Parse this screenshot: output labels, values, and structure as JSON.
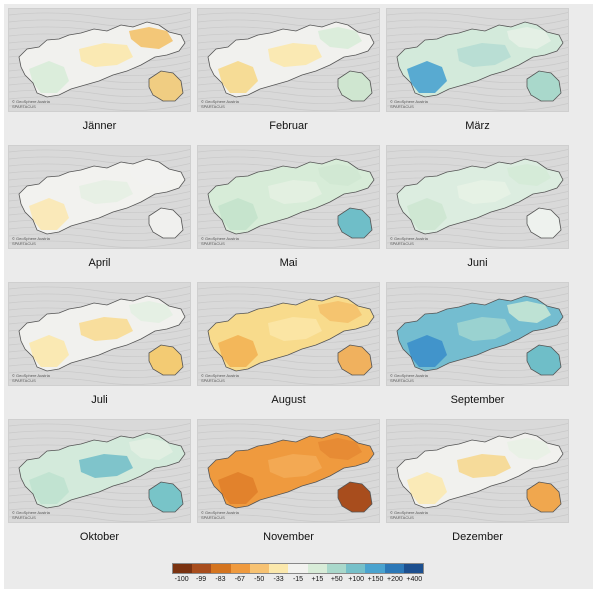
{
  "months": [
    {
      "label": "Jänner",
      "fills": {
        "base": "#f1f1ee",
        "a": "#d8ecd8",
        "b": "#fbe8ac",
        "c": "#f3c26a",
        "east": "#f0cd82"
      }
    },
    {
      "label": "Februar",
      "fills": {
        "base": "#f1f1ee",
        "a": "#f6d98c",
        "b": "#fbe8ac",
        "c": "#d8ecd8",
        "east": "#cfe6d0"
      }
    },
    {
      "label": "März",
      "fills": {
        "base": "#d3eadb",
        "a": "#4aa3cf",
        "b": "#b6ddd3",
        "c": "#e5f1e5",
        "east": "#a9d8cb"
      }
    },
    {
      "label": "April",
      "fills": {
        "base": "#f2f2ef",
        "a": "#fbe8b2",
        "b": "#e6f0e3",
        "c": "#f2f2ef",
        "east": "#f0f0ee"
      }
    },
    {
      "label": "Mai",
      "fills": {
        "base": "#d7ecd8",
        "a": "#c4e3cc",
        "b": "#e4f1e2",
        "c": "#d0e8d3",
        "east": "#6fbec8"
      }
    },
    {
      "label": "Juni",
      "fills": {
        "base": "#dcede0",
        "a": "#cde6d1",
        "b": "#e7f2e6",
        "c": "#d4ead7",
        "east": "#eef2ee"
      }
    },
    {
      "label": "Juli",
      "fills": {
        "base": "#f1f1ee",
        "a": "#fbe8ac",
        "b": "#f8dc94",
        "c": "#e3efe2",
        "east": "#f3cb73"
      }
    },
    {
      "label": "August",
      "fills": {
        "base": "#f8db8c",
        "a": "#f2b254",
        "b": "#fbe5a6",
        "c": "#f4c16c",
        "east": "#f0b15e"
      }
    },
    {
      "label": "September",
      "fills": {
        "base": "#74bdd0",
        "a": "#3c8fca",
        "b": "#9ed4cf",
        "c": "#c6e6d4",
        "east": "#6fbec8"
      }
    },
    {
      "label": "Oktober",
      "fills": {
        "base": "#d3eadb",
        "a": "#bfe2cf",
        "b": "#76c0c9",
        "c": "#e2f0e2",
        "east": "#78c4c8"
      }
    },
    {
      "label": "November",
      "fills": {
        "base": "#ef9a3e",
        "a": "#e07f2a",
        "b": "#f3ab55",
        "c": "#e68a33",
        "east": "#a84d1d"
      }
    },
    {
      "label": "Dezember",
      "fills": {
        "base": "#f1f1ee",
        "a": "#fbe9b0",
        "b": "#f6d890",
        "c": "#e8f1e4",
        "east": "#f0a74e"
      }
    }
  ],
  "copyright": {
    "line1": "© GeoSphere Austria",
    "line2": "SPARTACUS"
  },
  "legend": {
    "colors": [
      "#7a3210",
      "#a84d1d",
      "#d4741f",
      "#ef9a3e",
      "#f7c272",
      "#fbe8ac",
      "#f2f2ef",
      "#d8ecd8",
      "#a9d8cb",
      "#76c0c9",
      "#4aa3cf",
      "#2c78b7",
      "#1c4f8f"
    ],
    "ticks": [
      "-100",
      "-99",
      "-83",
      "-67",
      "-50",
      "-33",
      "-15",
      "+15",
      "+50",
      "+100",
      "+150",
      "+200",
      "+400"
    ]
  }
}
